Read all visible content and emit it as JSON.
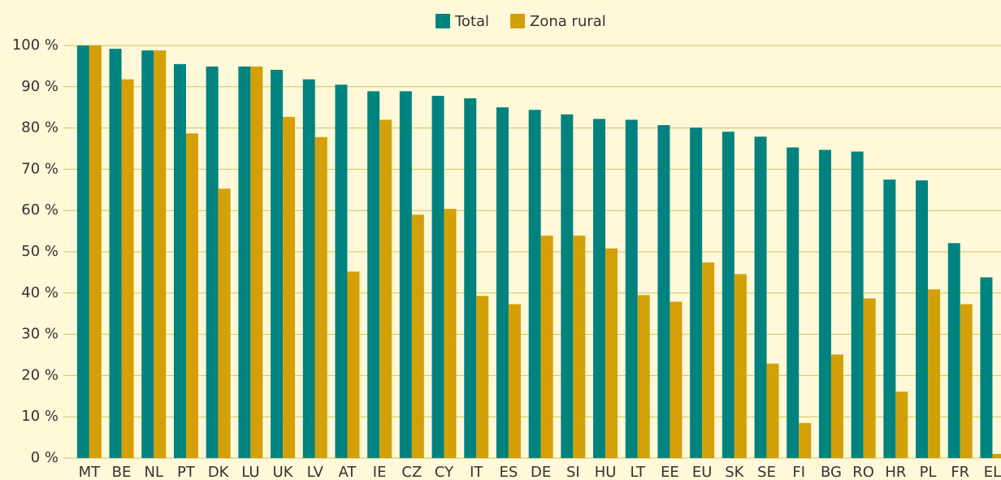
{
  "chart_data": {
    "type": "bar",
    "categories": [
      "MT",
      "BE",
      "NL",
      "PT",
      "DK",
      "LU",
      "UK",
      "LV",
      "AT",
      "IE",
      "CZ",
      "CY",
      "IT",
      "ES",
      "DE",
      "SI",
      "HU",
      "LT",
      "EE",
      "EU",
      "SK",
      "SE",
      "FI",
      "BG",
      "RO",
      "HR",
      "PL",
      "FR",
      "EL"
    ],
    "series": [
      {
        "name": "Total",
        "color": "#00837f",
        "values": [
          100,
          99.2,
          98.8,
          95.5,
          94.9,
          94.9,
          94.1,
          91.8,
          90.5,
          88.9,
          88.9,
          87.8,
          87.2,
          85.0,
          84.4,
          83.3,
          82.2,
          82.0,
          80.7,
          80.1,
          79.1,
          77.9,
          75.3,
          74.7,
          74.3,
          67.5,
          67.3,
          52.1,
          43.8
        ]
      },
      {
        "name": "Zona rural",
        "color": "#d4a007",
        "values": [
          100,
          91.8,
          98.8,
          78.7,
          65.3,
          94.9,
          82.7,
          77.8,
          45.2,
          82.0,
          59.0,
          60.4,
          39.3,
          37.3,
          53.9,
          53.9,
          50.8,
          39.5,
          37.9,
          47.4,
          44.6,
          22.9,
          8.5,
          25.1,
          38.7,
          16.1,
          40.9,
          37.3,
          1.0
        ]
      }
    ],
    "ylim": [
      0,
      100
    ],
    "yticks": [
      {
        "value": 0,
        "label": "0 %"
      },
      {
        "value": 10,
        "label": "10 %"
      },
      {
        "value": 20,
        "label": "20 %"
      },
      {
        "value": 30,
        "label": "30 %"
      },
      {
        "value": 40,
        "label": "40 %"
      },
      {
        "value": 50,
        "label": "50 %"
      },
      {
        "value": 60,
        "label": "60 %"
      },
      {
        "value": 70,
        "label": "70 %"
      },
      {
        "value": 80,
        "label": "80 %"
      },
      {
        "value": 90,
        "label": "90 %"
      },
      {
        "value": 100,
        "label": "100 %"
      }
    ],
    "grid": true,
    "legend": "top"
  }
}
